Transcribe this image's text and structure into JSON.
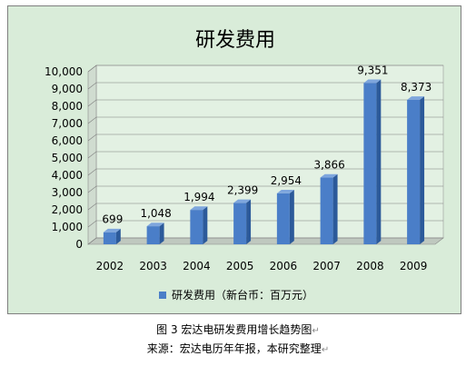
{
  "chart_data": {
    "type": "bar",
    "title": "研发费用",
    "categories": [
      "2002",
      "2003",
      "2004",
      "2005",
      "2006",
      "2007",
      "2008",
      "2009"
    ],
    "series": [
      {
        "name": "研发费用（新台币：百万元）",
        "values": [
          699,
          1048,
          1994,
          2399,
          2954,
          3866,
          9351,
          8373
        ],
        "labels": [
          "699",
          "1,048",
          "1,994",
          "2,399",
          "2,954",
          "3,866",
          "9,351",
          "8,373"
        ]
      }
    ],
    "yticks": [
      "0",
      "1,000",
      "2,000",
      "3,000",
      "4,000",
      "5,000",
      "6,000",
      "7,000",
      "8,000",
      "9,000",
      "10,000"
    ],
    "ylim": [
      0,
      10000
    ],
    "grid": true,
    "legend_position": "bottom",
    "bar_color": "#4a7ec8",
    "background_color": "#d9ecd9"
  },
  "caption": {
    "figure": "图 3  宏达电研发费用增长趋势图",
    "source": "来源：宏达电历年年报，本研究整理"
  }
}
